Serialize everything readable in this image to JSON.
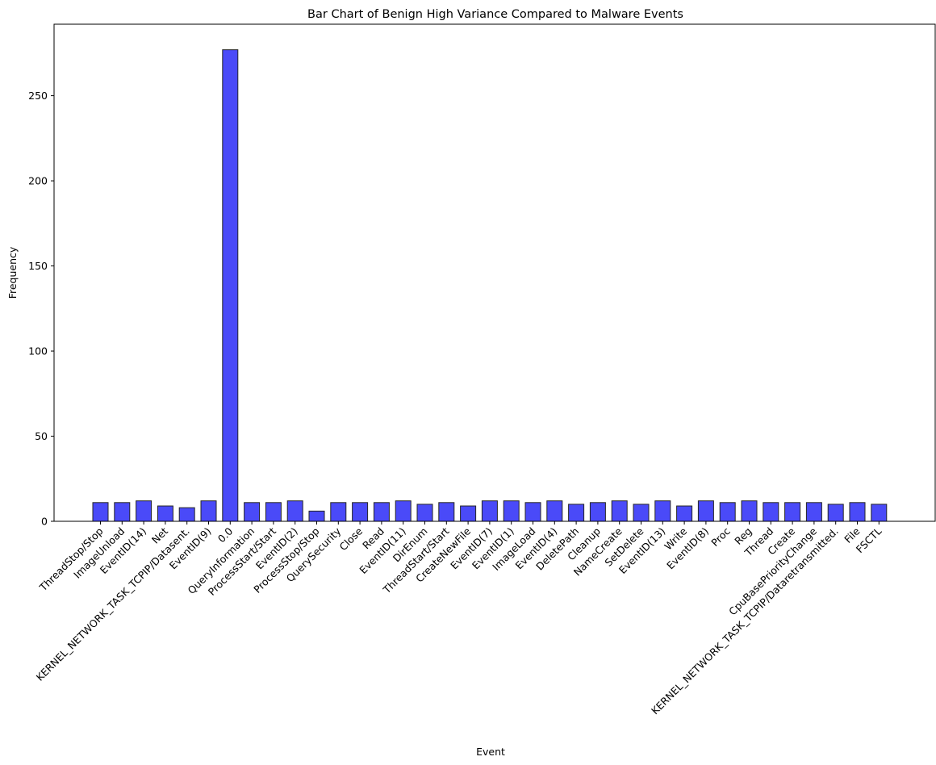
{
  "chart_data": {
    "type": "bar",
    "title": "Bar Chart of Benign High Variance Compared to Malware Events",
    "xlabel": "Event",
    "ylabel": "Frequency",
    "ylim": [
      0,
      292
    ],
    "yticks": [
      0,
      50,
      100,
      150,
      200,
      250
    ],
    "grid": false,
    "bar_color": "#4a4af8",
    "edge_color": "#262626",
    "categories": [
      "ThreadStop/Stop",
      "ImageUnload",
      "EventID(14)",
      "Net",
      "KERNEL_NETWORK_TASK_TCPIP/Datasent.",
      "EventID(9)",
      "0.0",
      "QueryInformation",
      "ProcessStart/Start",
      "EventID(2)",
      "ProcessStop/Stop",
      "QuerySecurity",
      "Close",
      "Read",
      "EventID(11)",
      "DirEnum",
      "ThreadStart/Start",
      "CreateNewFile",
      "EventID(7)",
      "EventID(1)",
      "ImageLoad",
      "EventID(4)",
      "DeletePath",
      "Cleanup",
      "NameCreate",
      "SetDelete",
      "EventID(13)",
      "Write",
      "EventID(8)",
      "Proc",
      "Reg",
      "Thread",
      "Create",
      "CpuBasePriorityChange",
      "KERNEL_NETWORK_TASK_TCPIP/Dataretransmitted.",
      "File",
      "FSCTL"
    ],
    "values": [
      11,
      11,
      12,
      9,
      8,
      12,
      277,
      11,
      11,
      12,
      6,
      11,
      11,
      11,
      12,
      10,
      11,
      9,
      12,
      12,
      11,
      12,
      10,
      11,
      12,
      10,
      12,
      9,
      12,
      11,
      12,
      11,
      11,
      11,
      10,
      11,
      10
    ]
  }
}
